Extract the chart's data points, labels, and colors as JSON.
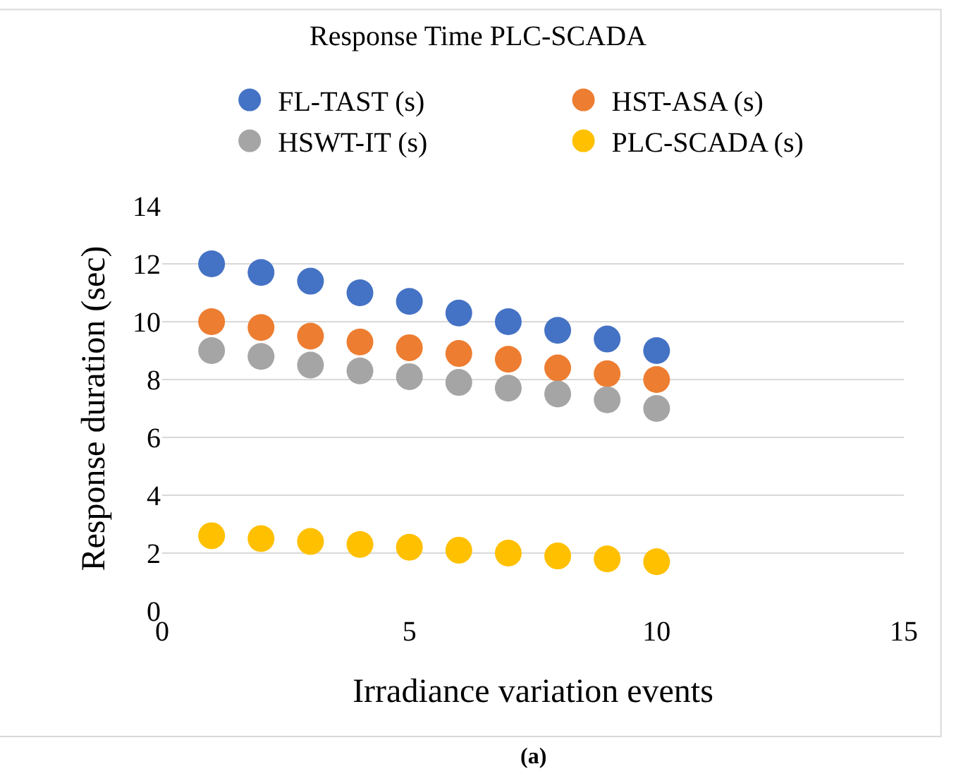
{
  "chart_data": {
    "type": "scatter",
    "title": "Response Time PLC-SCADA",
    "xlabel": "Irradiance variation events",
    "ylabel": "Response duration (sec)",
    "x": [
      1,
      2,
      3,
      4,
      5,
      6,
      7,
      8,
      9,
      10
    ],
    "series": [
      {
        "name": "FL-TAST (s)",
        "color": "#4472c4",
        "values": [
          12.0,
          11.7,
          11.4,
          11.0,
          10.7,
          10.3,
          10.0,
          9.7,
          9.4,
          9.0
        ]
      },
      {
        "name": "HST-ASA (s)",
        "color": "#ed7d31",
        "values": [
          10.0,
          9.8,
          9.5,
          9.3,
          9.1,
          8.9,
          8.7,
          8.4,
          8.2,
          8.0
        ]
      },
      {
        "name": "HSWT-IT (s)",
        "color": "#a5a5a5",
        "values": [
          9.0,
          8.8,
          8.5,
          8.3,
          8.1,
          7.9,
          7.7,
          7.5,
          7.3,
          7.0
        ]
      },
      {
        "name": "PLC-SCADA (s)",
        "color": "#ffc000",
        "values": [
          2.6,
          2.5,
          2.4,
          2.3,
          2.2,
          2.1,
          2.0,
          1.9,
          1.8,
          1.7
        ]
      }
    ],
    "xlim": [
      0,
      15
    ],
    "xticks": [
      0,
      5,
      10,
      15
    ],
    "ylim": [
      0,
      14
    ],
    "yticks": [
      0,
      2,
      4,
      6,
      8,
      10,
      12,
      14
    ],
    "grid": "y",
    "legend": "top",
    "marker": "circle",
    "annotations": [
      "(a)"
    ]
  }
}
